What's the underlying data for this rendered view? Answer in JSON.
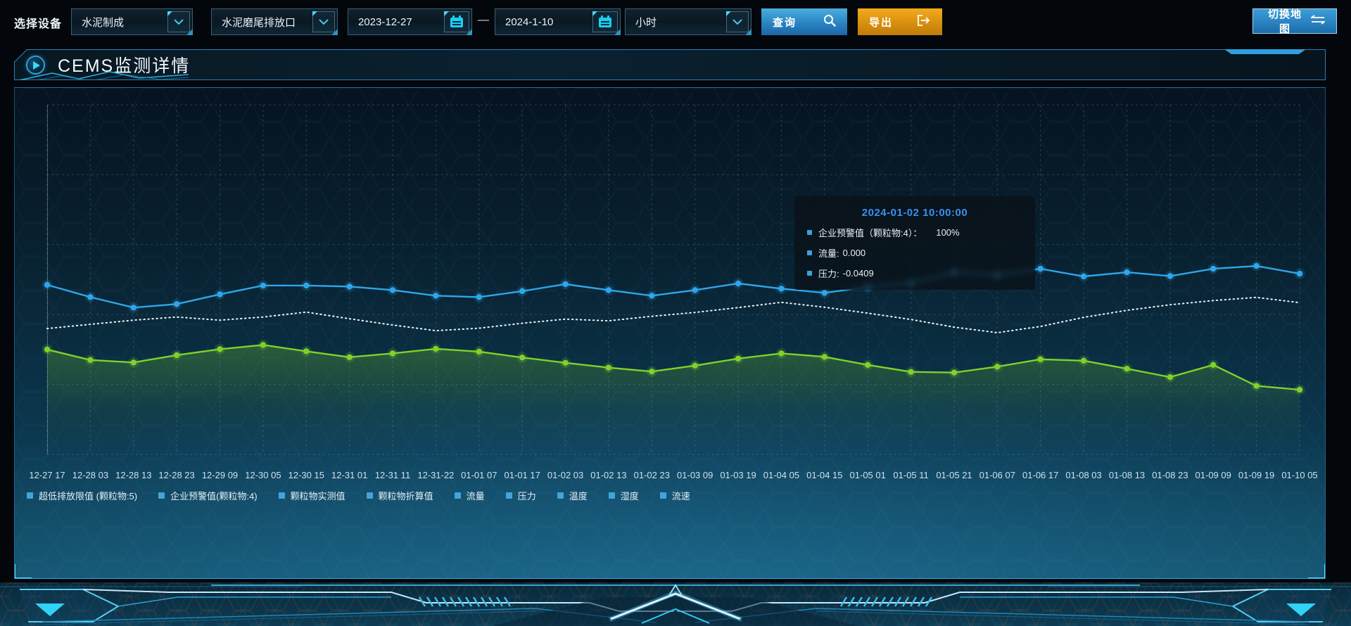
{
  "toolbar": {
    "device_label": "选择设备",
    "device_select": "水泥制成",
    "outlet_select": "水泥磨尾排放口",
    "date_start": "2023-12-27",
    "date_separator": "—",
    "date_end": "2024-1-10",
    "interval_select": "小时",
    "query_label": "查询",
    "export_label": "导出",
    "switch_map_label": "切换地图"
  },
  "icons": {
    "dropdown": "chevron-down",
    "calendar": "calendar",
    "query": "magnifier",
    "export": "box-arrow-right",
    "switch_map": "swap-arrows",
    "panel_title": "play-circle"
  },
  "panel": {
    "title": "CEMS监测详情"
  },
  "tooltip": {
    "title": "2024-01-02 10:00:00",
    "rows": [
      {
        "label": "企业预警值（颗粒物:4）：",
        "value": "100%"
      },
      {
        "label": "流量:",
        "value": "0.000"
      },
      {
        "label": "压力:",
        "value": "-0.0409"
      }
    ]
  },
  "legend": [
    "超低排放限值 (颗粒物:5)",
    "企业预警值(颗粒物:4)",
    "颗粒物实测值",
    "颗粒物折算值",
    "流量",
    "压力",
    "温度",
    "湿度",
    "流速"
  ],
  "chart_data": {
    "type": "line",
    "title": "",
    "xlabel": "",
    "ylabel": "",
    "ylim": [
      0,
      100
    ],
    "grid": "dashed",
    "legend_position": "bottom",
    "x_labels": [
      "12-27 17",
      "12-28 03",
      "12-28 13",
      "12-28 23",
      "12-29 09",
      "12-30 05",
      "12-30 15",
      "12-31 01",
      "12-31 11",
      "12-31-22",
      "01-01 07",
      "01-01 17",
      "01-02 03",
      "01-02 13",
      "01-02 23",
      "01-03 09",
      "01-03 19",
      "01-04 05",
      "01-04 15",
      "01-05 01",
      "01-05 11",
      "01-05 21",
      "01-06 07",
      "01-06 17",
      "01-08 03",
      "01-08 13",
      "01-08 23",
      "01-09 09",
      "01-09 19",
      "01-10 05"
    ],
    "series": [
      {
        "name": "blue-solid-line",
        "color": "#2fa6e9",
        "marker": "circle",
        "line_style": "solid",
        "values": [
          48.5,
          45.0,
          42.0,
          43.0,
          45.8,
          48.3,
          48.3,
          48.0,
          47.0,
          45.4,
          45.0,
          46.7,
          48.7,
          47.0,
          45.4,
          47.0,
          48.9,
          47.4,
          46.2,
          47.9,
          49.0,
          52.1,
          51.3,
          53.1,
          50.9,
          52.1,
          51.0,
          53.1,
          53.9,
          51.7
        ]
      },
      {
        "name": "white-dotted-line",
        "color": "#ecf3f7",
        "marker": "none",
        "line_style": "dotted",
        "values": [
          36.0,
          37.2,
          38.4,
          39.3,
          38.4,
          39.3,
          40.7,
          38.8,
          37.0,
          35.4,
          36.1,
          37.5,
          38.7,
          38.2,
          39.5,
          40.6,
          42.0,
          43.5,
          42.1,
          40.4,
          38.6,
          36.4,
          34.8,
          36.6,
          39.2,
          41.2,
          42.8,
          44.0,
          44.9,
          43.4
        ]
      },
      {
        "name": "green-solid-line",
        "color": "#7fd22a",
        "marker": "circle",
        "line_style": "solid",
        "area_fill": true,
        "values": [
          30.0,
          27.0,
          26.3,
          28.4,
          30.1,
          31.3,
          29.5,
          27.8,
          28.9,
          30.2,
          29.4,
          27.7,
          26.2,
          24.8,
          23.7,
          25.4,
          27.4,
          28.9,
          27.9,
          25.6,
          23.6,
          23.4,
          25.1,
          27.2,
          26.8,
          24.5,
          22.1,
          25.6,
          19.6,
          18.5
        ]
      }
    ]
  },
  "colors": {
    "accent_cyan": "#35c8f0",
    "query_blue": "#2e8fd0",
    "export_orange": "#e9a417",
    "map_button_blue": "#2a85c4",
    "series_blue": "#2fa6e9",
    "series_white": "#ecf3f7",
    "series_green": "#7fd22a",
    "tooltip_title_blue": "#3e8ff2",
    "legend_marker_blue": "#42a4da"
  }
}
